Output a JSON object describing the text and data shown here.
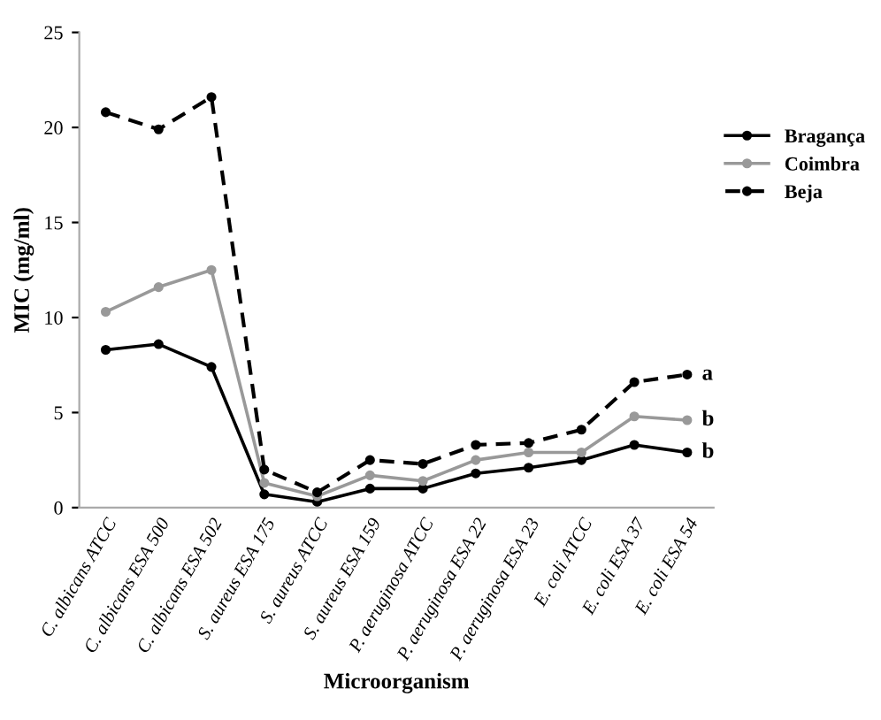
{
  "chart_data": {
    "type": "line",
    "xlabel": "Microorganism",
    "ylabel": "MIC (mg/ml)",
    "categories": [
      "C. albicans ATCC",
      "C. albicans ESA 500",
      "C. albicans ESA 502",
      "S. aureus ESA 175",
      "S. aureus ATCC",
      "S. aureus ESA 159",
      "P. aeruginosa ATCC",
      "P. aeruginosa ESA 22",
      "P. aeruginosa ESA 23",
      "E. coli ATCC",
      "E. coli ESA 37",
      "E. coli ESA 54"
    ],
    "series": [
      {
        "name": "Bragança",
        "color": "#000000",
        "line_style": "solid",
        "values": [
          8.3,
          8.6,
          7.4,
          0.7,
          0.3,
          1.0,
          1.0,
          1.8,
          2.1,
          2.5,
          3.3,
          2.9
        ]
      },
      {
        "name": "Coimbra",
        "color": "#999999",
        "line_style": "solid",
        "values": [
          10.3,
          11.6,
          12.5,
          1.3,
          0.6,
          1.7,
          1.4,
          2.5,
          2.9,
          2.9,
          4.8,
          4.6
        ]
      },
      {
        "name": "Beja",
        "color": "#000000",
        "line_style": "dashed",
        "values": [
          20.8,
          19.9,
          21.6,
          2.0,
          0.8,
          2.5,
          2.3,
          3.3,
          3.4,
          4.1,
          6.6,
          7.0
        ]
      }
    ],
    "annotations": [
      {
        "text": "a",
        "x": "E. coli ESA 54",
        "y": 7.0
      },
      {
        "text": "b",
        "x": "E. coli ESA 54",
        "y": 4.6
      },
      {
        "text": "b",
        "x": "E. coli ESA 54",
        "y": 2.9
      }
    ],
    "ylim": [
      0,
      25
    ],
    "yticks": [
      0,
      5,
      10,
      15,
      20,
      25
    ],
    "marker": "circle",
    "grid": false,
    "legend": "right"
  }
}
